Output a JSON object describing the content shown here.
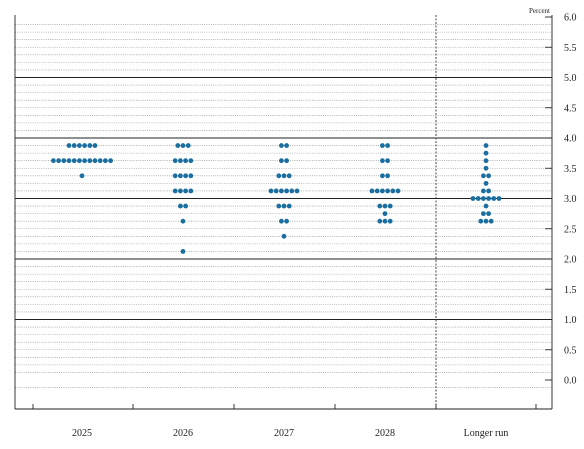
{
  "chart_data": {
    "type": "scatter",
    "style": "dot-plot",
    "y_unit_label": "Percent",
    "ylim": [
      -0.25,
      6.0
    ],
    "yticks": [
      "6.0",
      "5.5",
      "5.0",
      "4.5",
      "4.0",
      "3.5",
      "3.0",
      "2.5",
      "2.0",
      "1.5",
      "1.0",
      "0.5",
      "0.0"
    ],
    "ytick_values": [
      6.0,
      5.5,
      5.0,
      4.5,
      4.0,
      3.5,
      3.0,
      2.5,
      2.0,
      1.5,
      1.0,
      0.5,
      0.0
    ],
    "grid": "horizontal",
    "dot_color": "#1a6fa0",
    "categories": [
      "2025",
      "2026",
      "2027",
      "2028",
      "Longer run"
    ],
    "series": [
      {
        "category": "2025",
        "points": [
          {
            "y": 3.875,
            "count": 6
          },
          {
            "y": 3.625,
            "count": 12
          },
          {
            "y": 3.375,
            "count": 1
          }
        ]
      },
      {
        "category": "2026",
        "points": [
          {
            "y": 3.875,
            "count": 3
          },
          {
            "y": 3.625,
            "count": 4
          },
          {
            "y": 3.375,
            "count": 4
          },
          {
            "y": 3.125,
            "count": 4
          },
          {
            "y": 2.875,
            "count": 2
          },
          {
            "y": 2.625,
            "count": 1
          },
          {
            "y": 2.125,
            "count": 1
          }
        ]
      },
      {
        "category": "2027",
        "points": [
          {
            "y": 3.875,
            "count": 2
          },
          {
            "y": 3.625,
            "count": 2
          },
          {
            "y": 3.375,
            "count": 3
          },
          {
            "y": 3.125,
            "count": 6
          },
          {
            "y": 2.875,
            "count": 3
          },
          {
            "y": 2.625,
            "count": 2
          },
          {
            "y": 2.375,
            "count": 1
          }
        ]
      },
      {
        "category": "2028",
        "points": [
          {
            "y": 3.875,
            "count": 2
          },
          {
            "y": 3.625,
            "count": 2
          },
          {
            "y": 3.375,
            "count": 2
          },
          {
            "y": 3.125,
            "count": 6
          },
          {
            "y": 2.875,
            "count": 3
          },
          {
            "y": 2.75,
            "count": 1
          },
          {
            "y": 2.625,
            "count": 3
          }
        ]
      },
      {
        "category": "Longer run",
        "points": [
          {
            "y": 3.875,
            "count": 1
          },
          {
            "y": 3.75,
            "count": 1
          },
          {
            "y": 3.625,
            "count": 1
          },
          {
            "y": 3.5,
            "count": 1
          },
          {
            "y": 3.375,
            "count": 2
          },
          {
            "y": 3.25,
            "count": 1
          },
          {
            "y": 3.125,
            "count": 2
          },
          {
            "y": 3.0,
            "count": 6
          },
          {
            "y": 2.875,
            "count": 1
          },
          {
            "y": 2.75,
            "count": 2
          },
          {
            "y": 2.625,
            "count": 3
          }
        ]
      }
    ]
  }
}
